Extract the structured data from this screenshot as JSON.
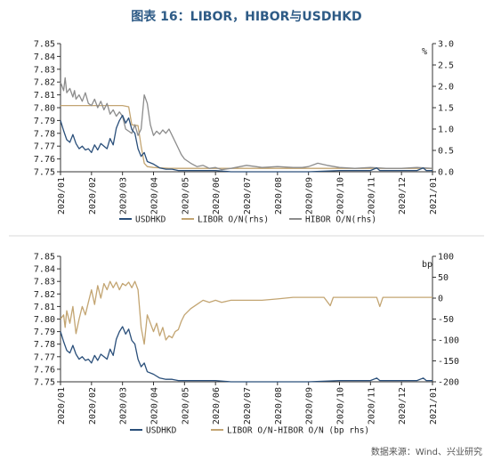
{
  "title": "图表 16：LIBOR，HIBOR与USDHKD",
  "source": "数据来源：Wind、兴业研究",
  "colors": {
    "usdhkd": "#2a4f7a",
    "libor": "#c3a572",
    "hibor": "#8c8c8c",
    "spread": "#c3a572",
    "axis": "#333333",
    "separator": "#d9d9d9"
  },
  "chart_data": [
    {
      "type": "line",
      "x_tick_labels": [
        "2020/01",
        "2020/02",
        "2020/03",
        "2020/04",
        "2020/05",
        "2020/06",
        "2020/07",
        "2020/08",
        "2020/09",
        "2020/10",
        "2020/11",
        "2020/12",
        "2021/01"
      ],
      "left_axis": {
        "ylim": [
          7.75,
          7.85
        ],
        "ticks": [
          "7.75",
          "7.76",
          "7.77",
          "7.78",
          "7.79",
          "7.80",
          "7.81",
          "7.82",
          "7.83",
          "7.84",
          "7.85"
        ]
      },
      "right_axis": {
        "unit": "%",
        "ylim": [
          0,
          3.0
        ],
        "ticks": [
          "0.0",
          "0.5",
          "1.0",
          "1.5",
          "2.0",
          "2.5",
          "3.0"
        ]
      },
      "legend": [
        "USDHKD",
        "LIBOR O/N(rhs)",
        "HIBOR O/N(rhs)"
      ],
      "legend_position": "bottom",
      "series": [
        {
          "name": "USDHKD",
          "axis": "left",
          "points": [
            [
              0,
              7.79
            ],
            [
              0.1,
              7.782
            ],
            [
              0.2,
              7.775
            ],
            [
              0.3,
              7.773
            ],
            [
              0.4,
              7.779
            ],
            [
              0.5,
              7.772
            ],
            [
              0.6,
              7.768
            ],
            [
              0.7,
              7.77
            ],
            [
              0.8,
              7.767
            ],
            [
              0.9,
              7.768
            ],
            [
              1.0,
              7.765
            ],
            [
              1.1,
              7.771
            ],
            [
              1.2,
              7.767
            ],
            [
              1.3,
              7.772
            ],
            [
              1.4,
              7.77
            ],
            [
              1.5,
              7.768
            ],
            [
              1.6,
              7.776
            ],
            [
              1.7,
              7.771
            ],
            [
              1.8,
              7.784
            ],
            [
              1.9,
              7.79
            ],
            [
              2.0,
              7.794
            ],
            [
              2.1,
              7.788
            ],
            [
              2.2,
              7.792
            ],
            [
              2.3,
              7.783
            ],
            [
              2.4,
              7.78
            ],
            [
              2.5,
              7.768
            ],
            [
              2.6,
              7.762
            ],
            [
              2.7,
              7.765
            ],
            [
              2.8,
              7.758
            ],
            [
              3.0,
              7.756
            ],
            [
              3.2,
              7.753
            ],
            [
              3.4,
              7.752
            ],
            [
              3.6,
              7.752
            ],
            [
              3.8,
              7.751
            ],
            [
              4.0,
              7.751
            ],
            [
              4.5,
              7.751
            ],
            [
              5.0,
              7.751
            ],
            [
              5.5,
              7.75
            ],
            [
              6.0,
              7.75
            ],
            [
              7.0,
              7.75
            ],
            [
              8.0,
              7.75
            ],
            [
              9.0,
              7.751
            ],
            [
              10.0,
              7.751
            ],
            [
              10.2,
              7.753
            ],
            [
              10.3,
              7.751
            ],
            [
              11.0,
              7.751
            ],
            [
              11.5,
              7.751
            ],
            [
              11.7,
              7.753
            ],
            [
              11.8,
              7.751
            ],
            [
              12.0,
              7.751
            ]
          ]
        },
        {
          "name": "LIBOR O/N(rhs)",
          "axis": "right",
          "points": [
            [
              0,
              1.55
            ],
            [
              0.5,
              1.55
            ],
            [
              1.0,
              1.55
            ],
            [
              1.5,
              1.55
            ],
            [
              2.0,
              1.55
            ],
            [
              2.2,
              1.52
            ],
            [
              2.3,
              1.1
            ],
            [
              2.5,
              1.08
            ],
            [
              2.6,
              0.6
            ],
            [
              2.7,
              0.2
            ],
            [
              2.8,
              0.12
            ],
            [
              3.0,
              0.1
            ],
            [
              3.5,
              0.08
            ],
            [
              4.0,
              0.08
            ],
            [
              5.0,
              0.08
            ],
            [
              6.0,
              0.08
            ],
            [
              7.0,
              0.08
            ],
            [
              8.0,
              0.08
            ],
            [
              9.0,
              0.08
            ],
            [
              10.0,
              0.08
            ],
            [
              11.0,
              0.08
            ],
            [
              12.0,
              0.08
            ]
          ]
        },
        {
          "name": "HIBOR O/N(rhs)",
          "axis": "right",
          "points": [
            [
              0,
              2.1
            ],
            [
              0.1,
              1.9
            ],
            [
              0.15,
              2.2
            ],
            [
              0.2,
              1.85
            ],
            [
              0.3,
              1.95
            ],
            [
              0.4,
              1.75
            ],
            [
              0.45,
              1.9
            ],
            [
              0.5,
              1.7
            ],
            [
              0.6,
              1.8
            ],
            [
              0.7,
              1.65
            ],
            [
              0.8,
              1.85
            ],
            [
              0.9,
              1.6
            ],
            [
              1.0,
              1.55
            ],
            [
              1.1,
              1.7
            ],
            [
              1.2,
              1.5
            ],
            [
              1.3,
              1.65
            ],
            [
              1.4,
              1.45
            ],
            [
              1.5,
              1.6
            ],
            [
              1.6,
              1.35
            ],
            [
              1.7,
              1.45
            ],
            [
              1.8,
              1.3
            ],
            [
              1.9,
              1.4
            ],
            [
              2.0,
              1.3
            ],
            [
              2.1,
              1.0
            ],
            [
              2.2,
              0.95
            ],
            [
              2.3,
              0.9
            ],
            [
              2.4,
              1.1
            ],
            [
              2.5,
              0.85
            ],
            [
              2.6,
              1.0
            ],
            [
              2.7,
              1.8
            ],
            [
              2.8,
              1.6
            ],
            [
              2.9,
              1.1
            ],
            [
              3.0,
              0.85
            ],
            [
              3.1,
              0.95
            ],
            [
              3.2,
              0.88
            ],
            [
              3.3,
              0.98
            ],
            [
              3.4,
              0.9
            ],
            [
              3.5,
              1.0
            ],
            [
              3.6,
              0.85
            ],
            [
              3.7,
              0.7
            ],
            [
              3.8,
              0.55
            ],
            [
              3.9,
              0.4
            ],
            [
              4.0,
              0.3
            ],
            [
              4.2,
              0.2
            ],
            [
              4.4,
              0.12
            ],
            [
              4.6,
              0.15
            ],
            [
              4.8,
              0.08
            ],
            [
              5.0,
              0.1
            ],
            [
              5.2,
              0.05
            ],
            [
              5.5,
              0.08
            ],
            [
              6.0,
              0.15
            ],
            [
              6.3,
              0.12
            ],
            [
              6.5,
              0.1
            ],
            [
              7.0,
              0.12
            ],
            [
              7.5,
              0.1
            ],
            [
              7.8,
              0.1
            ],
            [
              8.0,
              0.12
            ],
            [
              8.3,
              0.2
            ],
            [
              8.6,
              0.15
            ],
            [
              9.0,
              0.1
            ],
            [
              9.5,
              0.08
            ],
            [
              10.0,
              0.1
            ],
            [
              10.5,
              0.08
            ],
            [
              11.0,
              0.08
            ],
            [
              11.5,
              0.1
            ],
            [
              12.0,
              0.08
            ]
          ]
        }
      ]
    },
    {
      "type": "line",
      "x_tick_labels": [
        "2020/01",
        "2020/02",
        "2020/03",
        "2020/04",
        "2020/05",
        "2020/06",
        "2020/07",
        "2020/08",
        "2020/09",
        "2020/10",
        "2020/11",
        "2020/12",
        "2021/01"
      ],
      "left_axis": {
        "ylim": [
          7.75,
          7.85
        ],
        "ticks": [
          "7.75",
          "7.76",
          "7.77",
          "7.78",
          "7.79",
          "7.80",
          "7.81",
          "7.82",
          "7.83",
          "7.84",
          "7.85"
        ]
      },
      "right_axis": {
        "unit": "bp",
        "ylim": [
          -200,
          100
        ],
        "ticks": [
          "-200",
          "-150",
          "-100",
          "-50",
          "0",
          "50",
          "100"
        ]
      },
      "legend": [
        "USDHKD",
        "LIBOR O/N-HIBOR O/N (bp rhs)"
      ],
      "legend_position": "bottom",
      "series": [
        {
          "name": "USDHKD",
          "axis": "left",
          "points": [
            [
              0,
              7.79
            ],
            [
              0.1,
              7.782
            ],
            [
              0.2,
              7.775
            ],
            [
              0.3,
              7.773
            ],
            [
              0.4,
              7.779
            ],
            [
              0.5,
              7.772
            ],
            [
              0.6,
              7.768
            ],
            [
              0.7,
              7.77
            ],
            [
              0.8,
              7.767
            ],
            [
              0.9,
              7.768
            ],
            [
              1.0,
              7.765
            ],
            [
              1.1,
              7.771
            ],
            [
              1.2,
              7.767
            ],
            [
              1.3,
              7.772
            ],
            [
              1.4,
              7.77
            ],
            [
              1.5,
              7.768
            ],
            [
              1.6,
              7.776
            ],
            [
              1.7,
              7.771
            ],
            [
              1.8,
              7.784
            ],
            [
              1.9,
              7.79
            ],
            [
              2.0,
              7.794
            ],
            [
              2.1,
              7.788
            ],
            [
              2.2,
              7.792
            ],
            [
              2.3,
              7.783
            ],
            [
              2.4,
              7.78
            ],
            [
              2.5,
              7.768
            ],
            [
              2.6,
              7.762
            ],
            [
              2.7,
              7.765
            ],
            [
              2.8,
              7.758
            ],
            [
              3.0,
              7.756
            ],
            [
              3.2,
              7.753
            ],
            [
              3.4,
              7.752
            ],
            [
              3.6,
              7.752
            ],
            [
              3.8,
              7.751
            ],
            [
              4.0,
              7.751
            ],
            [
              4.5,
              7.751
            ],
            [
              5.0,
              7.751
            ],
            [
              5.5,
              7.75
            ],
            [
              6.0,
              7.75
            ],
            [
              7.0,
              7.75
            ],
            [
              8.0,
              7.75
            ],
            [
              9.0,
              7.751
            ],
            [
              10.0,
              7.751
            ],
            [
              10.2,
              7.753
            ],
            [
              10.3,
              7.751
            ],
            [
              11.0,
              7.751
            ],
            [
              11.5,
              7.751
            ],
            [
              11.7,
              7.753
            ],
            [
              11.8,
              7.751
            ],
            [
              12.0,
              7.751
            ]
          ]
        },
        {
          "name": "LIBOR O/N-HIBOR O/N (bp rhs)",
          "axis": "right",
          "points": [
            [
              0,
              -50
            ],
            [
              0.1,
              -40
            ],
            [
              0.15,
              -70
            ],
            [
              0.2,
              -30
            ],
            [
              0.3,
              -60
            ],
            [
              0.4,
              -20
            ],
            [
              0.5,
              -85
            ],
            [
              0.6,
              -50
            ],
            [
              0.7,
              -20
            ],
            [
              0.8,
              -40
            ],
            [
              0.9,
              -10
            ],
            [
              1.0,
              20
            ],
            [
              1.1,
              -15
            ],
            [
              1.2,
              30
            ],
            [
              1.3,
              0
            ],
            [
              1.4,
              35
            ],
            [
              1.5,
              20
            ],
            [
              1.6,
              40
            ],
            [
              1.7,
              25
            ],
            [
              1.8,
              38
            ],
            [
              1.9,
              20
            ],
            [
              2.0,
              35
            ],
            [
              2.1,
              30
            ],
            [
              2.2,
              38
            ],
            [
              2.3,
              25
            ],
            [
              2.4,
              40
            ],
            [
              2.5,
              20
            ],
            [
              2.6,
              -70
            ],
            [
              2.7,
              -110
            ],
            [
              2.8,
              -40
            ],
            [
              2.9,
              -60
            ],
            [
              3.0,
              -80
            ],
            [
              3.1,
              -60
            ],
            [
              3.2,
              -90
            ],
            [
              3.3,
              -70
            ],
            [
              3.4,
              -100
            ],
            [
              3.5,
              -90
            ],
            [
              3.6,
              -95
            ],
            [
              3.7,
              -80
            ],
            [
              3.8,
              -75
            ],
            [
              3.9,
              -55
            ],
            [
              4.0,
              -40
            ],
            [
              4.2,
              -25
            ],
            [
              4.4,
              -15
            ],
            [
              4.6,
              -5
            ],
            [
              4.8,
              -10
            ],
            [
              5.0,
              -5
            ],
            [
              5.2,
              -10
            ],
            [
              5.5,
              -5
            ],
            [
              6.0,
              -5
            ],
            [
              6.5,
              -5
            ],
            [
              7.0,
              -2
            ],
            [
              7.5,
              2
            ],
            [
              8.0,
              2
            ],
            [
              8.5,
              2
            ],
            [
              8.7,
              -18
            ],
            [
              8.8,
              2
            ],
            [
              9.0,
              2
            ],
            [
              9.5,
              2
            ],
            [
              10.0,
              2
            ],
            [
              10.2,
              2
            ],
            [
              10.3,
              -20
            ],
            [
              10.4,
              2
            ],
            [
              11.0,
              2
            ],
            [
              11.5,
              2
            ],
            [
              12.0,
              2
            ]
          ]
        }
      ]
    }
  ]
}
